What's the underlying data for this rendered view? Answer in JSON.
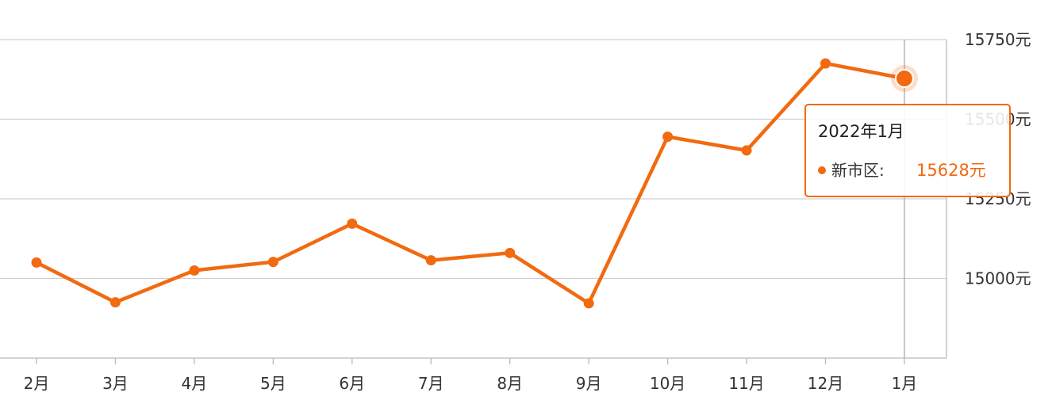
{
  "chart_data": {
    "type": "line",
    "categories": [
      "2月",
      "3月",
      "4月",
      "5月",
      "6月",
      "7月",
      "8月",
      "9月",
      "10月",
      "11月",
      "12月",
      "1月"
    ],
    "series": [
      {
        "name": "新市区",
        "values": [
          15050,
          14925,
          15025,
          15052,
          15172,
          15057,
          15080,
          14922,
          15445,
          15402,
          15675,
          15628
        ]
      }
    ],
    "y_tick_labels": [
      "15000元",
      "15250元",
      "15500元",
      "15750元"
    ],
    "y_ticks": [
      15000,
      15250,
      15500,
      15750
    ],
    "ylim": [
      14750,
      15750
    ],
    "y_axis_position": "right",
    "grid": true,
    "color": "#f26a10",
    "tooltip": {
      "title": "2022年1月",
      "series_name": "新市区",
      "separator": ":",
      "value": "15628元",
      "index": 11
    }
  }
}
